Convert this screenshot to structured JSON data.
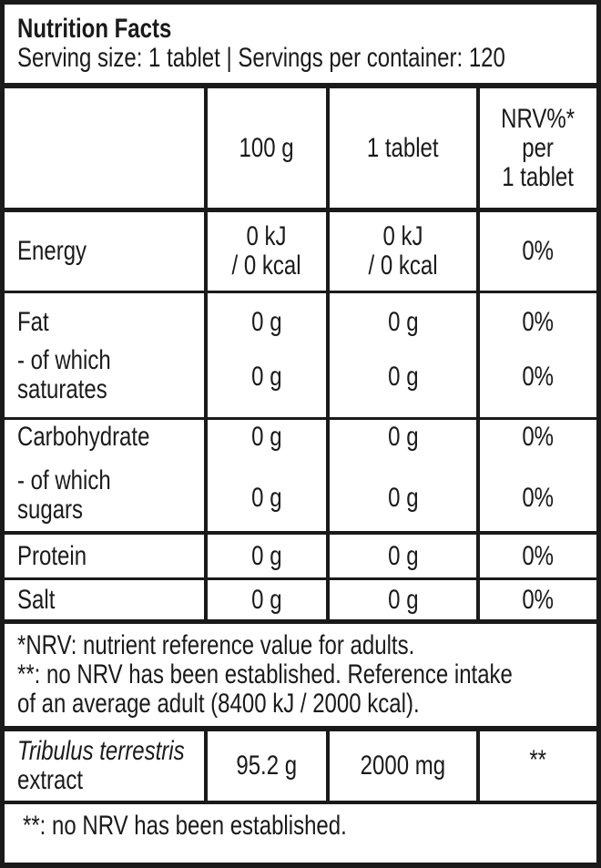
{
  "title": "Nutrition Facts",
  "serving": "Serving size: 1 tablet | Servings per container: 120",
  "header": {
    "col1": "100 g",
    "col2": "1 tablet",
    "col3_line1": "NRV%*",
    "col3_line2": "per",
    "col3_line3": "1 tablet"
  },
  "rows": {
    "energy": {
      "label": "Energy",
      "per100_1": "0 kJ",
      "per100_2": "/ 0 kcal",
      "tab_1": "0 kJ",
      "tab_2": "/ 0 kcal",
      "nrv": "0%"
    },
    "fat": {
      "label": "Fat",
      "per100": "0 g",
      "tab": "0 g",
      "nrv": "0%"
    },
    "saturates": {
      "label_1": "- of which",
      "label_2": "saturates",
      "per100": "0 g",
      "tab": "0 g",
      "nrv": "0%"
    },
    "carbohydrate": {
      "label": "Carbohydrate",
      "per100": "0 g",
      "tab": "0 g",
      "nrv": "0%"
    },
    "sugars": {
      "label_1": "- of which",
      "label_2": "sugars",
      "per100": "0 g",
      "tab": "0 g",
      "nrv": "0%"
    },
    "protein": {
      "label": "Protein",
      "per100": "0 g",
      "tab": "0 g",
      "nrv": "0%"
    },
    "salt": {
      "label": "Salt",
      "per100": "0 g",
      "tab": "0 g",
      "nrv": "0%"
    }
  },
  "footnote": {
    "line1": "*NRV: nutrient reference value for adults.",
    "line2": "**: no NRV has been established. Reference intake",
    "line3": "of an average adult (8400 kJ / 2000 kcal)."
  },
  "extract": {
    "label_italic": "Tribulus terrestris",
    "label_2": "extract",
    "per100": "95.2 g",
    "tab": "2000 mg",
    "nrv": "**"
  },
  "footnote2": "**: no NRV has been established."
}
